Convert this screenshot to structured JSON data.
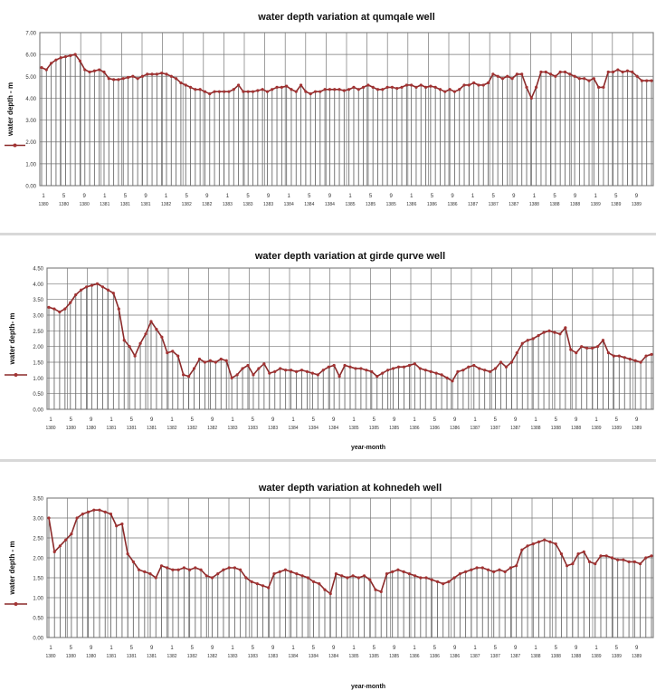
{
  "chart_data": [
    {
      "type": "line",
      "title": "water depth variation at qumqale well",
      "ylabel": "water depth - m",
      "xlabel": "",
      "ylim": [
        0,
        7
      ],
      "yticks": [
        "0.00",
        "1.00",
        "2.00",
        "3.00",
        "4.00",
        "5.00",
        "6.00",
        "7.00"
      ],
      "month_labels": [
        "1",
        "5",
        "9"
      ],
      "year_labels": [
        "1380",
        "1380",
        "1380",
        "1381",
        "1381",
        "1381",
        "1382",
        "1382",
        "1382",
        "1383",
        "1383",
        "1383",
        "1384",
        "1384",
        "1384",
        "1385",
        "1385",
        "1385",
        "1386",
        "1386",
        "1386",
        "1387",
        "1387",
        "1387",
        "1388",
        "1388",
        "1388",
        "1389",
        "1389",
        "1389"
      ],
      "grid": true,
      "series": [
        {
          "values": [
            5.4,
            5.3,
            5.6,
            5.75,
            5.85,
            5.9,
            5.95,
            6.0,
            5.7,
            5.3,
            5.2,
            5.25,
            5.3,
            5.2,
            4.9,
            4.85,
            4.85,
            4.9,
            4.95,
            5.0,
            4.9,
            5.0,
            5.1,
            5.1,
            5.1,
            5.15,
            5.1,
            5.0,
            4.9,
            4.7,
            4.6,
            4.5,
            4.4,
            4.4,
            4.3,
            4.2,
            4.3,
            4.3,
            4.3,
            4.3,
            4.4,
            4.6,
            4.3,
            4.3,
            4.3,
            4.35,
            4.4,
            4.3,
            4.4,
            4.5,
            4.5,
            4.55,
            4.4,
            4.3,
            4.6,
            4.3,
            4.2,
            4.3,
            4.3,
            4.4,
            4.4,
            4.4,
            4.4,
            4.35,
            4.4,
            4.5,
            4.4,
            4.5,
            4.6,
            4.5,
            4.4,
            4.4,
            4.5,
            4.5,
            4.45,
            4.5,
            4.6,
            4.6,
            4.5,
            4.6,
            4.5,
            4.55,
            4.5,
            4.4,
            4.3,
            4.4,
            4.3,
            4.4,
            4.6,
            4.6,
            4.7,
            4.6,
            4.6,
            4.7,
            5.1,
            5.0,
            4.9,
            5.0,
            4.9,
            5.1,
            5.1,
            4.5,
            4.0,
            4.5,
            5.2,
            5.2,
            5.1,
            5.0,
            5.2,
            5.2,
            5.1,
            5.0,
            4.9,
            4.9,
            4.8,
            4.9,
            4.5,
            4.5,
            5.2,
            5.2,
            5.3,
            5.2,
            5.25,
            5.2,
            5.0,
            4.8,
            4.8,
            4.8
          ]
        }
      ]
    },
    {
      "type": "line",
      "title": "water depth variation at girde qurve well",
      "ylabel": "water depth- m",
      "xlabel": "year-month",
      "ylim": [
        0,
        4.5
      ],
      "yticks": [
        "0.00",
        "0.50",
        "1.00",
        "1.50",
        "2.00",
        "2.50",
        "3.00",
        "3.50",
        "4.00",
        "4.50"
      ],
      "month_labels": [
        "1",
        "5",
        "9"
      ],
      "year_labels": [
        "1380",
        "1380",
        "1380",
        "1381",
        "1381",
        "1381",
        "1382",
        "1382",
        "1382",
        "1383",
        "1383",
        "1383",
        "1384",
        "1384",
        "1384",
        "1385",
        "1385",
        "1385",
        "1386",
        "1386",
        "1386",
        "1387",
        "1387",
        "1387",
        "1388",
        "1388",
        "1388",
        "1389",
        "1389",
        "1389"
      ],
      "grid": true,
      "series": [
        {
          "values": [
            3.25,
            3.2,
            3.1,
            3.2,
            3.4,
            3.65,
            3.8,
            3.9,
            3.95,
            4.0,
            3.9,
            3.8,
            3.7,
            3.2,
            2.2,
            2.0,
            1.7,
            2.1,
            2.4,
            2.8,
            2.55,
            2.3,
            1.8,
            1.85,
            1.7,
            1.1,
            1.05,
            1.3,
            1.6,
            1.5,
            1.55,
            1.5,
            1.6,
            1.55,
            1.0,
            1.1,
            1.3,
            1.4,
            1.1,
            1.3,
            1.45,
            1.15,
            1.2,
            1.3,
            1.25,
            1.25,
            1.2,
            1.25,
            1.2,
            1.15,
            1.1,
            1.25,
            1.35,
            1.4,
            1.05,
            1.4,
            1.35,
            1.3,
            1.3,
            1.25,
            1.2,
            1.05,
            1.15,
            1.25,
            1.3,
            1.35,
            1.35,
            1.4,
            1.45,
            1.3,
            1.25,
            1.2,
            1.15,
            1.1,
            1.0,
            0.9,
            1.2,
            1.25,
            1.35,
            1.4,
            1.3,
            1.25,
            1.2,
            1.3,
            1.5,
            1.35,
            1.5,
            1.8,
            2.1,
            2.2,
            2.25,
            2.35,
            2.45,
            2.5,
            2.45,
            2.4,
            2.6,
            1.9,
            1.8,
            2.0,
            1.95,
            1.95,
            2.0,
            2.2,
            1.8,
            1.7,
            1.7,
            1.65,
            1.6,
            1.55,
            1.5,
            1.7,
            1.75
          ]
        }
      ]
    },
    {
      "type": "line",
      "title": "water depth variation at kohnedeh well",
      "ylabel": "water depth - m",
      "xlabel": "year-month",
      "ylim": [
        0,
        3.5
      ],
      "yticks": [
        "0.00",
        "0.50",
        "1.00",
        "1.50",
        "2.00",
        "2.50",
        "3.00",
        "3.50"
      ],
      "month_labels": [
        "1",
        "5",
        "9"
      ],
      "year_labels": [
        "1380",
        "1380",
        "1380",
        "1381",
        "1381",
        "1381",
        "1382",
        "1382",
        "1382",
        "1383",
        "1383",
        "1383",
        "1384",
        "1384",
        "1384",
        "1385",
        "1385",
        "1385",
        "1386",
        "1386",
        "1386",
        "1387",
        "1387",
        "1387",
        "1388",
        "1388",
        "1388",
        "1389",
        "1389",
        "1389"
      ],
      "grid": true,
      "series": [
        {
          "values": [
            3.0,
            2.15,
            2.3,
            2.45,
            2.6,
            3.0,
            3.1,
            3.15,
            3.2,
            3.2,
            3.15,
            3.1,
            2.8,
            2.85,
            2.1,
            1.9,
            1.7,
            1.65,
            1.6,
            1.5,
            1.8,
            1.75,
            1.7,
            1.7,
            1.75,
            1.7,
            1.75,
            1.7,
            1.55,
            1.5,
            1.6,
            1.7,
            1.75,
            1.75,
            1.7,
            1.5,
            1.4,
            1.35,
            1.3,
            1.25,
            1.6,
            1.65,
            1.7,
            1.65,
            1.6,
            1.55,
            1.5,
            1.4,
            1.35,
            1.2,
            1.1,
            1.6,
            1.55,
            1.5,
            1.55,
            1.5,
            1.55,
            1.45,
            1.2,
            1.15,
            1.6,
            1.65,
            1.7,
            1.65,
            1.6,
            1.55,
            1.5,
            1.5,
            1.45,
            1.4,
            1.35,
            1.4,
            1.5,
            1.6,
            1.65,
            1.7,
            1.75,
            1.75,
            1.7,
            1.65,
            1.7,
            1.65,
            1.75,
            1.8,
            2.2,
            2.3,
            2.35,
            2.4,
            2.45,
            2.4,
            2.35,
            2.1,
            1.8,
            1.85,
            2.1,
            2.15,
            1.9,
            1.85,
            2.05,
            2.05,
            2.0,
            1.95,
            1.95,
            1.9,
            1.9,
            1.85,
            2.0,
            2.05
          ]
        }
      ]
    }
  ]
}
